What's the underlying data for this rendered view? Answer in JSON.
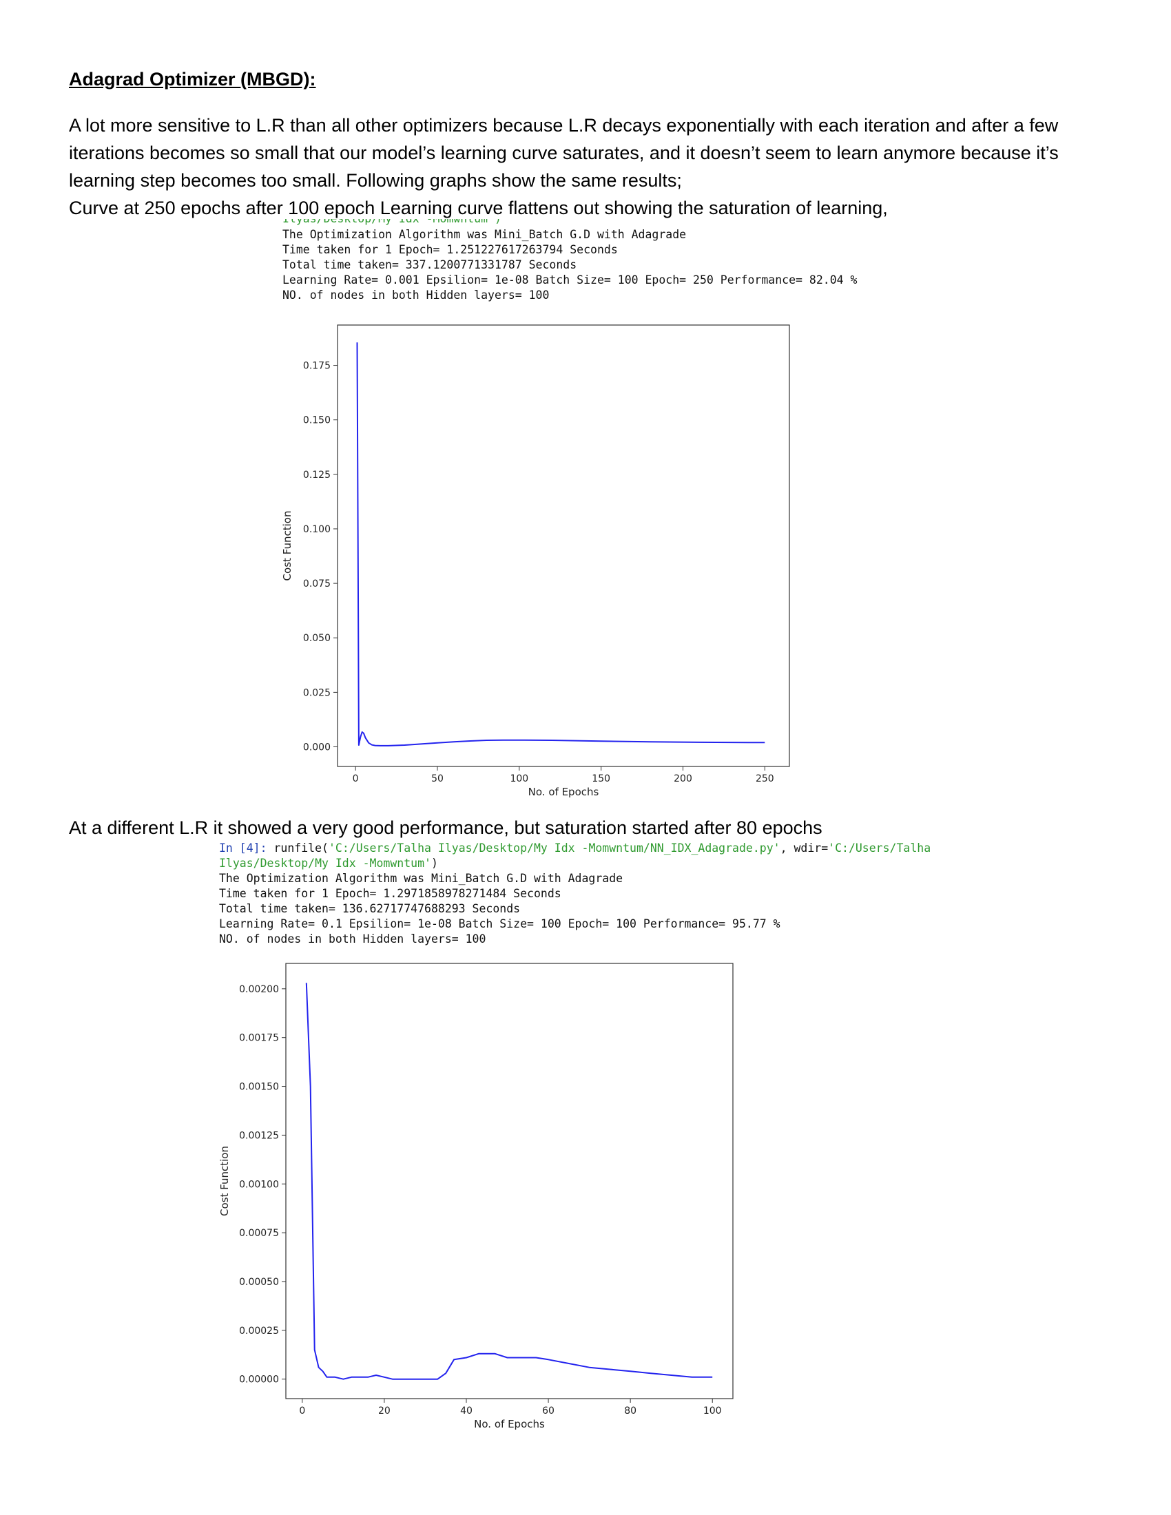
{
  "heading": "Adagrad Optimizer (MBGD):",
  "paragraphs": {
    "intro": "A lot more sensitive to L.R than all other optimizers because L.R decays exponentially with each iteration and after a few iterations becomes so small that our model’s learning curve saturates, and it doesn’t seem to learn anymore because it’s learning step becomes too small. Following graphs show the same results;",
    "curve_250": "Curve at 250 epochs after 100 epoch Learning curve flattens out showing the saturation of learning,",
    "different_lr": "At a different L.R it showed a very good performance, but saturation started after 80 epochs"
  },
  "console1": {
    "cutoff_line": "Ilyas/Desktop/My Idx -Momwntum')",
    "lines": [
      "The Optimization Algorithm was Mini_Batch G.D with Adagrade",
      "Time taken for 1 Epoch= 1.251227617263794 Seconds",
      "Total time taken= 337.1200771331787 Seconds",
      "Learning Rate= 0.001 Epsilion= 1e-08 Batch Size= 100 Epoch= 250 Performance= 82.04 %",
      "NO. of nodes in both Hidden layers= 100"
    ]
  },
  "console2": {
    "prompt": "In [4]:",
    "cmd_func": " runfile(",
    "cmd_path": "'C:/Users/Talha Ilyas/Desktop/My Idx -Momwntum/NN_IDX_Adagrade.py'",
    "cmd_sep": ", wdir=",
    "cmd_wdir_1": "'C:/Users/Talha",
    "cmd_wdir_2": "Ilyas/Desktop/My Idx -Momwntum'",
    "cmd_close": ")",
    "lines": [
      "The Optimization Algorithm was Mini_Batch G.D with Adagrade",
      "Time taken for 1 Epoch= 1.2971858978271484 Seconds",
      "Total time taken= 136.62717747688293 Seconds",
      "Learning Rate= 0.1 Epsilion= 1e-08 Batch Size= 100 Epoch= 100 Performance= 95.77 %",
      "NO. of nodes in both Hidden layers= 100"
    ]
  },
  "chart_data": [
    {
      "type": "line",
      "title": "",
      "xlabel": "No. of Epochs",
      "ylabel": "Cost Function",
      "xlim": [
        -11,
        265
      ],
      "ylim": [
        -0.009,
        0.1935
      ],
      "xticks": [
        0,
        50,
        100,
        150,
        200,
        250
      ],
      "yticks": [
        0.0,
        0.025,
        0.05,
        0.075,
        0.1,
        0.125,
        0.15,
        0.175
      ],
      "ytick_labels": [
        "0.000",
        "0.025",
        "0.050",
        "0.075",
        "0.100",
        "0.125",
        "0.150",
        "0.175"
      ],
      "color": "#2323ee",
      "series": [
        {
          "name": "cost",
          "x": [
            1,
            2,
            3,
            4,
            5,
            6,
            8,
            10,
            12,
            15,
            20,
            30,
            40,
            50,
            60,
            70,
            80,
            90,
            100,
            120,
            150,
            180,
            210,
            240,
            250
          ],
          "y": [
            0.1855,
            0.0008,
            0.0045,
            0.0068,
            0.0062,
            0.0042,
            0.0018,
            0.0009,
            0.0006,
            0.0005,
            0.0005,
            0.0008,
            0.0013,
            0.0018,
            0.0023,
            0.0027,
            0.003,
            0.0031,
            0.0031,
            0.003,
            0.0026,
            0.0023,
            0.0021,
            0.002,
            0.002
          ]
        }
      ]
    },
    {
      "type": "line",
      "title": "",
      "xlabel": "No. of Epochs",
      "ylabel": "Cost Function",
      "xlim": [
        -4,
        105
      ],
      "ylim": [
        -0.0001,
        0.00213
      ],
      "xticks": [
        0,
        20,
        40,
        60,
        80,
        100
      ],
      "yticks": [
        0.0,
        0.00025,
        0.0005,
        0.00075,
        0.001,
        0.00125,
        0.0015,
        0.00175,
        0.002
      ],
      "ytick_labels": [
        "0.00000",
        "0.00025",
        "0.00050",
        "0.00075",
        "0.00100",
        "0.00125",
        "0.00150",
        "0.00175",
        "0.00200"
      ],
      "color": "#2323ee",
      "series": [
        {
          "name": "cost",
          "x": [
            1,
            2,
            3,
            4,
            5,
            6,
            8,
            10,
            12,
            14,
            16,
            18,
            20,
            22,
            25,
            28,
            30,
            33,
            35,
            37,
            40,
            43,
            45,
            47,
            50,
            53,
            57,
            60,
            65,
            70,
            75,
            80,
            85,
            90,
            95,
            100
          ],
          "y": [
            0.00203,
            0.0015,
            0.00015,
            6e-05,
            4e-05,
            1e-05,
            1e-05,
            0.0,
            1e-05,
            1e-05,
            1e-05,
            2e-05,
            1e-05,
            0.0,
            0.0,
            0.0,
            0.0,
            0.0,
            3e-05,
            0.0001,
            0.00011,
            0.00013,
            0.00013,
            0.00013,
            0.00011,
            0.00011,
            0.00011,
            0.0001,
            8e-05,
            6e-05,
            5e-05,
            4e-05,
            3e-05,
            2e-05,
            1e-05,
            1e-05
          ]
        }
      ]
    }
  ]
}
